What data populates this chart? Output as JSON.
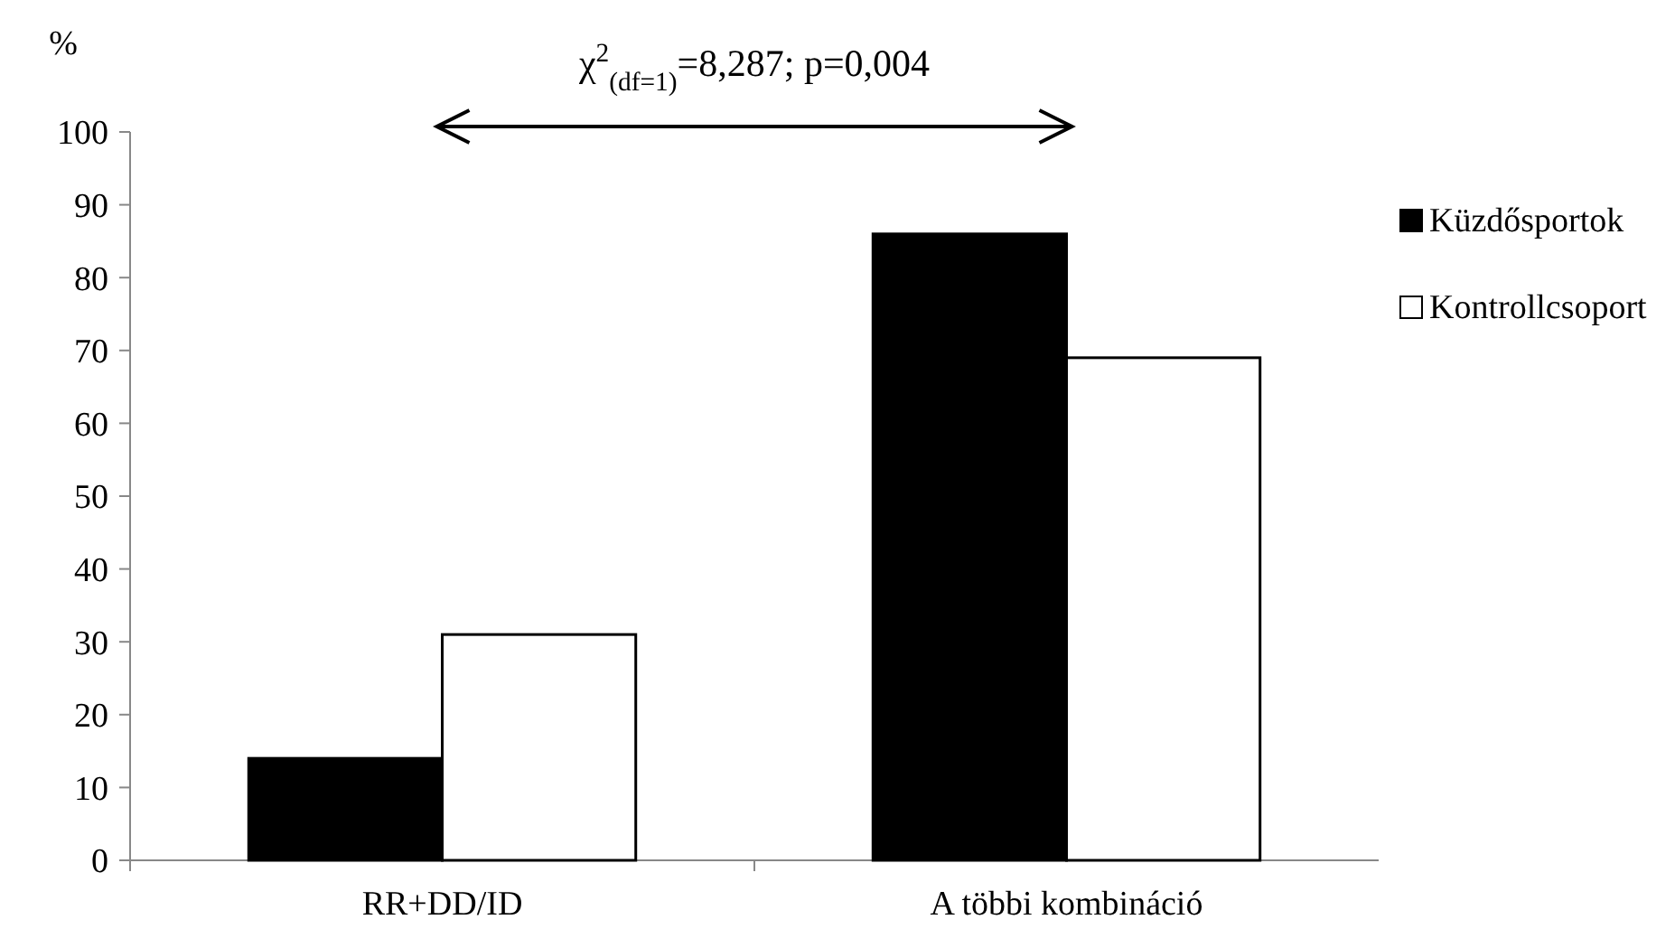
{
  "chart_data": {
    "type": "bar",
    "ylabel": "%",
    "categories": [
      "RR+DD/ID",
      "A többi kombináció"
    ],
    "series": [
      {
        "name": "Küzdősportok",
        "color": "#000000",
        "values": [
          14,
          86
        ]
      },
      {
        "name": "Kontrollcsoport",
        "color": "#ffffff",
        "values": [
          31,
          69
        ]
      }
    ],
    "ylim": [
      0,
      100
    ],
    "yticks": [
      0,
      10,
      20,
      30,
      40,
      50,
      60,
      70,
      80,
      90,
      100
    ],
    "grid": false,
    "legend": "right",
    "annotations": [
      "χ$^{2}$$_{(df=1)}$=8,287; p=0,004"
    ]
  }
}
